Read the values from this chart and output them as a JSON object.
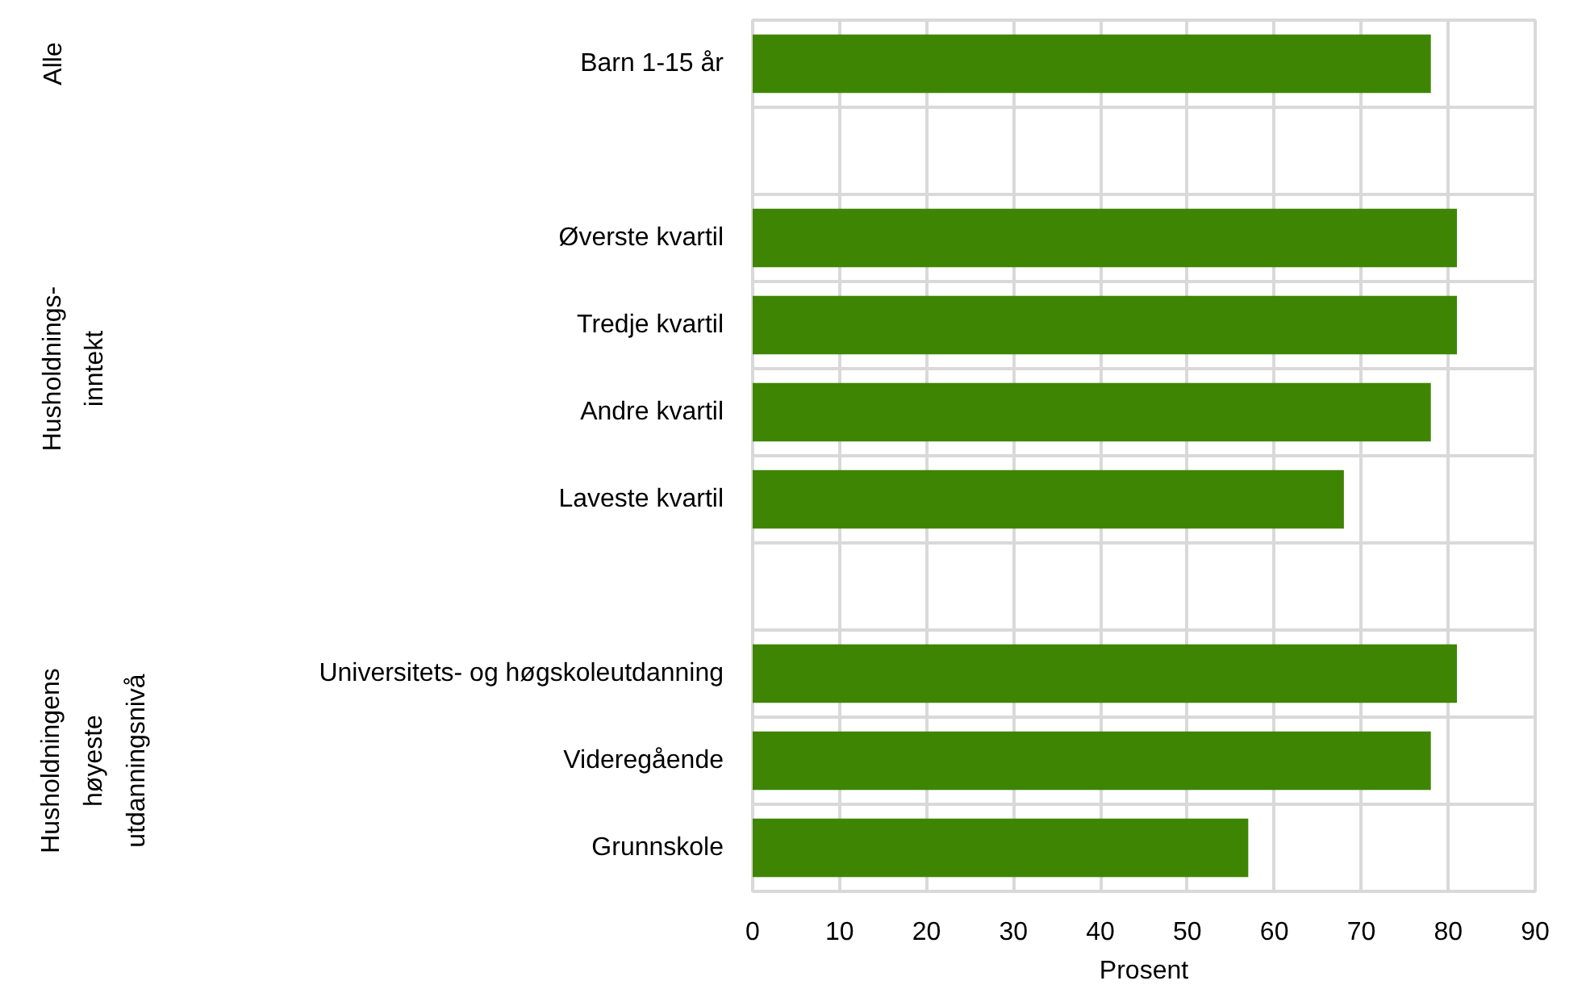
{
  "chart_data": {
    "type": "bar",
    "orientation": "horizontal",
    "categories": [
      "Barn 1-15 år",
      null,
      "Øverste kvartil",
      "Tredje kvartil",
      "Andre kvartil",
      "Laveste kvartil",
      null,
      "Universitets- og høgskoleutdanning",
      "Videregående",
      "Grunnskole"
    ],
    "values": [
      78,
      null,
      81,
      81,
      78,
      68,
      null,
      81,
      78,
      57
    ],
    "color": "#3f8504",
    "xlim": [
      0,
      90
    ],
    "xticks": [
      0,
      10,
      20,
      30,
      40,
      50,
      60,
      70,
      80,
      90
    ],
    "xlabel": "Prosent",
    "annotations": [
      "Alle",
      "Husholdnings-\ninntekt",
      "Husholdningens\nhøyeste\nutdanningsnivå"
    ],
    "grid": true
  }
}
